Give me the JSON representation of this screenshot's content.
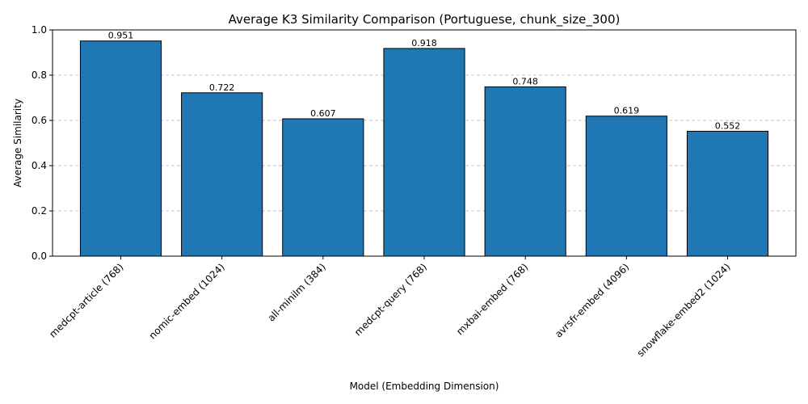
{
  "chart_data": {
    "type": "bar",
    "title": "Average K3 Similarity Comparison (Portuguese, chunk_size_300)",
    "xlabel": "Model (Embedding Dimension)",
    "ylabel": "Average Similarity",
    "ylim": [
      0,
      1.0
    ],
    "yticks": [
      "0.0",
      "0.2",
      "0.4",
      "0.6",
      "0.8",
      "1.0"
    ],
    "grid": "y-dashed",
    "bar_color": "#1f77b4",
    "categories": [
      "medcpt-article (768)",
      "nomic-embed (1024)",
      "all-minilm (384)",
      "medcpt-query (768)",
      "mxbai-embed (768)",
      "avrsfr-embed (4096)",
      "snowflake-embed2 (1024)"
    ],
    "values": [
      0.951,
      0.722,
      0.607,
      0.918,
      0.748,
      0.619,
      0.552
    ],
    "value_labels": [
      "0.951",
      "0.722",
      "0.607",
      "0.918",
      "0.748",
      "0.619",
      "0.552"
    ]
  }
}
